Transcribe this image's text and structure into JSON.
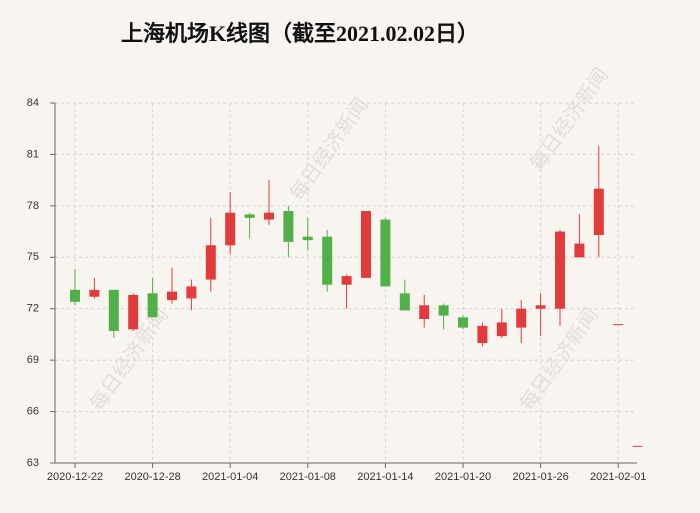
{
  "chart_data": {
    "type": "candlestick",
    "title": "上海机场K线图（截至2021.02.02日）",
    "watermark": "每日经济新闻",
    "categories": [
      "2020-12-22",
      null,
      null,
      null,
      "2020-12-28",
      null,
      null,
      null,
      "2021-01-04",
      null,
      null,
      null,
      "2021-01-08",
      null,
      null,
      null,
      "2021-01-14",
      null,
      null,
      null,
      "2021-01-20",
      null,
      null,
      null,
      "2021-01-26",
      null,
      null,
      null,
      "2021-02-01",
      null
    ],
    "open": [
      73.1,
      72.7,
      73.1,
      70.8,
      72.9,
      72.5,
      72.6,
      73.7,
      75.7,
      77.5,
      77.2,
      77.7,
      76.2,
      76.2,
      73.4,
      73.8,
      77.2,
      72.9,
      71.4,
      72.2,
      71.5,
      70.0,
      70.4,
      70.9,
      72.0,
      72.0,
      75.0,
      76.3,
      71.1,
      64.0
    ],
    "close": [
      72.4,
      73.1,
      70.7,
      72.8,
      71.5,
      73.0,
      73.3,
      75.7,
      77.6,
      77.3,
      77.6,
      75.9,
      76.0,
      73.4,
      73.9,
      77.7,
      73.3,
      71.9,
      72.2,
      71.6,
      70.9,
      71.0,
      71.2,
      72.0,
      72.2,
      76.5,
      75.8,
      79.0,
      71.1,
      64.0
    ],
    "high": [
      74.3,
      73.8,
      73.1,
      72.9,
      73.8,
      74.4,
      73.7,
      77.3,
      78.8,
      77.6,
      79.5,
      78.0,
      77.3,
      76.6,
      74.0,
      77.7,
      77.3,
      73.7,
      72.8,
      72.3,
      71.6,
      71.2,
      72.0,
      72.5,
      72.9,
      76.6,
      77.5,
      81.5,
      71.1,
      64.0
    ],
    "low": [
      72.2,
      72.6,
      70.3,
      70.7,
      71.5,
      72.3,
      71.9,
      73.0,
      75.2,
      76.1,
      76.9,
      75.0,
      75.4,
      73.0,
      72.0,
      73.8,
      73.3,
      71.9,
      70.9,
      70.8,
      70.8,
      69.8,
      70.3,
      70.0,
      70.4,
      71.0,
      75.0,
      75.0,
      71.1,
      64.0
    ],
    "up_color": "#e23b3b",
    "down_color": "#52b048",
    "ylim": [
      63,
      84
    ],
    "yticks": [
      63,
      66,
      69,
      72,
      75,
      78,
      81,
      84
    ],
    "grid": true
  }
}
